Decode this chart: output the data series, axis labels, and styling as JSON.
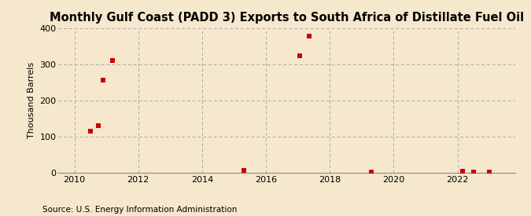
{
  "title": "Monthly Gulf Coast (PADD 3) Exports to South Africa of Distillate Fuel Oil",
  "ylabel": "Thousand Barrels",
  "source": "Source: U.S. Energy Information Administration",
  "background_color": "#f5e8cc",
  "plot_background_color": "#f5e8cc",
  "marker_color": "#cc0000",
  "marker": "s",
  "marker_size": 4,
  "xlim": [
    2009.5,
    2023.8
  ],
  "ylim": [
    0,
    400
  ],
  "yticks": [
    0,
    100,
    200,
    300,
    400
  ],
  "xticks": [
    2010,
    2012,
    2014,
    2016,
    2018,
    2020,
    2022
  ],
  "data_x": [
    2010.5,
    2010.75,
    2010.9,
    2011.2,
    2015.3,
    2017.05,
    2017.35,
    2019.3,
    2022.15,
    2022.5,
    2023.0
  ],
  "data_y": [
    115,
    130,
    257,
    310,
    7,
    323,
    378,
    3,
    4,
    3,
    3
  ],
  "title_fontsize": 10.5,
  "ylabel_fontsize": 8,
  "tick_fontsize": 8,
  "source_fontsize": 7.5
}
